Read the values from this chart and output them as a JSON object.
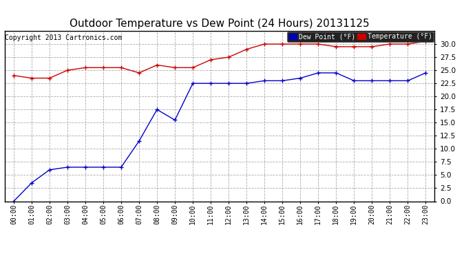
{
  "title": "Outdoor Temperature vs Dew Point (24 Hours) 20131125",
  "copyright": "Copyright 2013 Cartronics.com",
  "hours": [
    "00:00",
    "01:00",
    "02:00",
    "03:00",
    "04:00",
    "05:00",
    "06:00",
    "07:00",
    "08:00",
    "09:00",
    "10:00",
    "11:00",
    "12:00",
    "13:00",
    "14:00",
    "15:00",
    "16:00",
    "17:00",
    "18:00",
    "19:00",
    "20:00",
    "21:00",
    "22:00",
    "23:00"
  ],
  "dew_point": [
    0.0,
    3.5,
    6.0,
    6.5,
    6.5,
    6.5,
    6.5,
    11.5,
    17.5,
    15.5,
    22.5,
    22.5,
    22.5,
    22.5,
    23.0,
    23.0,
    23.5,
    24.5,
    24.5,
    23.0,
    23.0,
    23.0,
    23.0,
    24.5
  ],
  "temperature": [
    24.0,
    23.5,
    23.5,
    25.0,
    25.5,
    25.5,
    25.5,
    24.5,
    26.0,
    25.5,
    25.5,
    27.0,
    27.5,
    29.0,
    30.0,
    30.0,
    30.0,
    30.0,
    29.5,
    29.5,
    29.5,
    30.0,
    30.0,
    30.5
  ],
  "dew_color": "#0000cc",
  "temp_color": "#cc0000",
  "bg_color": "#ffffff",
  "plot_bg_color": "#ffffff",
  "grid_color": "#aaaaaa",
  "title_fontsize": 11,
  "ylim": [
    0.0,
    32.5
  ],
  "yticks": [
    0.0,
    2.5,
    5.0,
    7.5,
    10.0,
    12.5,
    15.0,
    17.5,
    20.0,
    22.5,
    25.0,
    27.5,
    30.0
  ],
  "legend_dew_label": "Dew Point (°F)",
  "legend_temp_label": "Temperature (°F)",
  "legend_dew_bg": "#0000bb",
  "legend_temp_bg": "#cc0000",
  "border_color": "#000000",
  "copyright_fontsize": 7,
  "tick_fontsize": 7,
  "ytick_fontsize": 7.5
}
